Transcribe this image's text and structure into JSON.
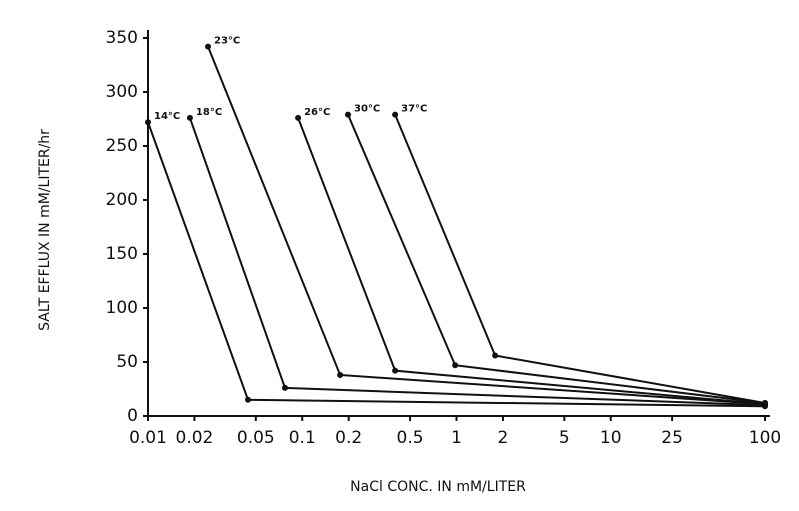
{
  "chart_data": {
    "type": "line",
    "x_label": "NaCl CONC. IN mM/LITER",
    "y_label": "SALT EFFLUX IN mM/LITER/hr",
    "log_x": true,
    "xlim": [
      0.01,
      100
    ],
    "xticks": [
      0.01,
      0.02,
      0.05,
      0.1,
      0.2,
      0.5,
      1,
      2,
      5,
      10,
      25,
      100
    ],
    "ylim": [
      0,
      350
    ],
    "yticks": [
      0,
      50,
      100,
      150,
      200,
      250,
      300,
      350
    ],
    "series": [
      {
        "name": "14°C",
        "color": "#111111",
        "x": [
          0.01,
          0.0445,
          100
        ],
        "values": [
          272,
          15,
          9
        ]
      },
      {
        "name": "18°C",
        "color": "#111111",
        "x": [
          0.0187,
          0.0773,
          100
        ],
        "values": [
          276,
          26,
          10
        ]
      },
      {
        "name": "23°C",
        "color": "#111111",
        "x": [
          0.0245,
          0.176,
          100
        ],
        "values": [
          342,
          38,
          11
        ]
      },
      {
        "name": "26°C",
        "color": "#111111",
        "x": [
          0.094,
          0.4,
          100
        ],
        "values": [
          276,
          42,
          11
        ]
      },
      {
        "name": "30°C",
        "color": "#111111",
        "x": [
          0.198,
          0.98,
          100
        ],
        "values": [
          279,
          47,
          12
        ]
      },
      {
        "name": "37°C",
        "color": "#111111",
        "x": [
          0.4,
          1.78,
          100
        ],
        "values": [
          279,
          56,
          12
        ]
      }
    ]
  }
}
